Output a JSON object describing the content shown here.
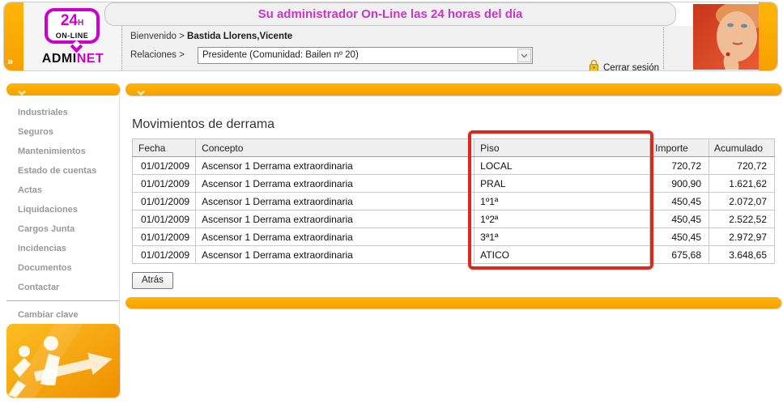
{
  "header": {
    "title": "Su administrador On-Line las 24 horas del día",
    "collapse_glyph": "»",
    "logo": {
      "hours": "24",
      "hours_suffix": "H",
      "online": "ON-LINE",
      "brand_black": "ADMI",
      "brand_accent": "NET"
    },
    "welcome_label": "Bienvenido >",
    "welcome_name": "Bastida Llorens,Vicente",
    "relations_label": "Relaciones >",
    "relations_value": "Presidente (Comunidad: Bailen nº 20)",
    "logout_label": "Cerrar sesión"
  },
  "sidebar": {
    "items": [
      "Industriales",
      "Seguros",
      "Mantenimientos",
      "Estado de cuentas",
      "Actas",
      "Liquidaciones",
      "Cargos Junta",
      "Incidencias",
      "Documentos",
      "Contactar"
    ],
    "footer_item": "Cambiar clave"
  },
  "main": {
    "title": "Movimientos de derrama",
    "back_button": "Atrás",
    "table": {
      "columns": [
        "Fecha",
        "Concepto",
        "Piso",
        "Importe",
        "Acumulado"
      ],
      "column_keys": [
        "fecha",
        "concepto",
        "piso",
        "importe",
        "acumulado"
      ],
      "rows": [
        [
          "01/01/2009",
          "Ascensor 1 Derrama extraordinaria",
          "LOCAL",
          "720,72",
          "720,72"
        ],
        [
          "01/01/2009",
          "Ascensor 1 Derrama extraordinaria",
          "PRAL",
          "900,90",
          "1.621,62"
        ],
        [
          "01/01/2009",
          "Ascensor 1 Derrama extraordinaria",
          "1º1ª",
          "450,45",
          "2.072,07"
        ],
        [
          "01/01/2009",
          "Ascensor 1 Derrama extraordinaria",
          "1º2ª",
          "450,45",
          "2.522,52"
        ],
        [
          "01/01/2009",
          "Ascensor 1 Derrama extraordinaria",
          "3ª1ª",
          "450,45",
          "2.972,97"
        ],
        [
          "01/01/2009",
          "Ascensor 1 Derrama extraordinaria",
          "ATICO",
          "675,68",
          "3.648,65"
        ]
      ]
    }
  },
  "colors": {
    "accent_orange": "#FCAC00",
    "title_magenta": "#CC33CC",
    "logo_magenta": "#CC00CC",
    "annotation_red": "#E3261D",
    "sidebar_text": "#999999"
  }
}
